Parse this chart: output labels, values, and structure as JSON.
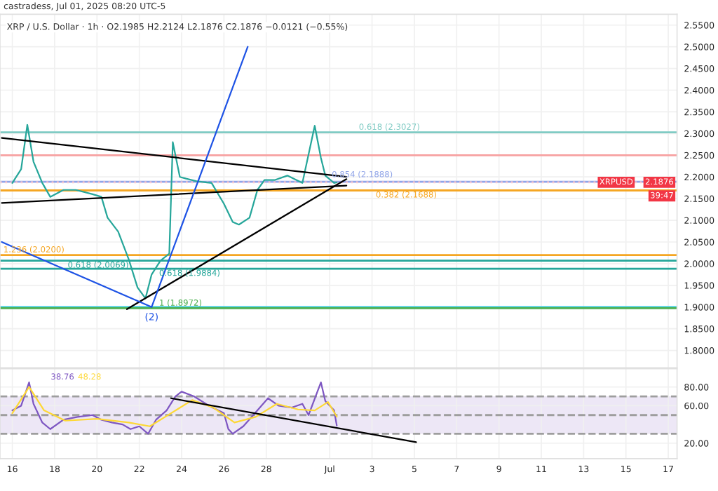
{
  "chart_data": [
    {
      "type": "line",
      "subtitle": "castradess, Jul 01, 2025 08:20 UTC-5",
      "title": "XRP / U.S. Dollar · 1h · O2.1985 H2.2124 L2.1876 C2.1876 −0.0121 (−0.55%)",
      "xlim": [
        "2025-06-15T10:00",
        "2025-07-17T10:00"
      ],
      "ylim": [
        1.76,
        2.575
      ],
      "xticks": [
        {
          "value": "2025-06-16",
          "label": null
        },
        {
          "value": "2025-06-18",
          "label": null
        },
        {
          "value": "2025-06-20",
          "label": null
        },
        {
          "value": "2025-06-22",
          "label": null
        },
        {
          "value": "2025-06-24",
          "label": null
        },
        {
          "value": "2025-06-26",
          "label": null
        },
        {
          "value": "2025-06-28",
          "label": null
        },
        {
          "value": "2025-07-01",
          "label": null
        },
        {
          "value": "2025-07-03",
          "label": null
        },
        {
          "value": "2025-07-05",
          "label": null
        },
        {
          "value": "2025-07-07",
          "label": null
        },
        {
          "value": "2025-07-09",
          "label": null
        },
        {
          "value": "2025-07-11",
          "label": null
        },
        {
          "value": "2025-07-13",
          "label": null
        },
        {
          "value": "2025-07-15",
          "label": null
        },
        {
          "value": "2025-07-17",
          "label": null
        }
      ],
      "yticks": [
        {
          "value": 1.8,
          "label": "1.8000"
        },
        {
          "value": 1.85,
          "label": "1.8500"
        },
        {
          "value": 1.9,
          "label": "1.9000"
        },
        {
          "value": 1.95,
          "label": "1.9500"
        },
        {
          "value": 2.0,
          "label": "2.0000"
        },
        {
          "value": 2.05,
          "label": "2.0500"
        },
        {
          "value": 2.1,
          "label": "2.1000"
        },
        {
          "value": 2.15,
          "label": "2.1500"
        },
        {
          "value": 2.2,
          "label": "2.2000"
        },
        {
          "value": 2.25,
          "label": "2.2500"
        },
        {
          "value": 2.3,
          "label": "2.3000"
        },
        {
          "value": 2.35,
          "label": "2.3500"
        },
        {
          "value": 2.4,
          "label": "2.4000"
        },
        {
          "value": 2.45,
          "label": "2.4500"
        },
        {
          "value": 2.5,
          "label": "2.5000"
        },
        {
          "value": 2.55,
          "label": "2.5500"
        }
      ],
      "tick_labels": "y",
      "grid": true,
      "series": [
        {
          "color": "#26a69a",
          "x": [
            "2025-06-16T00:00",
            "2025-06-16T10:00",
            "2025-06-16T17:00",
            "2025-06-17T00:00",
            "2025-06-17T10:00",
            "2025-06-17T19:00",
            "2025-06-18T10:00",
            "2025-06-19T00:00",
            "2025-06-19T19:00",
            "2025-06-20T05:00",
            "2025-06-20T12:00",
            "2025-06-21T00:00",
            "2025-06-21T12:00",
            "2025-06-21T22:00",
            "2025-06-22T07:00",
            "2025-06-22T14:00",
            "2025-06-23T00:00",
            "2025-06-23T10:00",
            "2025-06-23T14:00",
            "2025-06-23T22:00",
            "2025-06-24T05:00",
            "2025-06-24T17:00",
            "2025-06-25T10:00",
            "2025-06-26T00:00",
            "2025-06-26T10:00",
            "2025-06-26T17:00",
            "2025-06-27T05:00",
            "2025-06-27T14:00",
            "2025-06-27T22:00",
            "2025-06-28T10:00",
            "2025-06-29T00:00",
            "2025-06-29T17:00",
            "2025-06-30T07:00",
            "2025-06-30T14:00",
            "2025-06-30T19:00",
            "2025-07-01T05:00",
            "2025-07-01T08:00"
          ],
          "values": [
            2.186,
            2.218,
            2.32,
            2.235,
            2.186,
            2.154,
            2.17,
            2.17,
            2.16,
            2.154,
            2.106,
            2.074,
            2.01,
            1.945,
            1.92,
            1.975,
            2.007,
            2.023,
            2.28,
            2.2,
            2.196,
            2.19,
            2.186,
            2.138,
            2.096,
            2.09,
            2.106,
            2.17,
            2.193,
            2.193,
            2.203,
            2.186,
            2.318,
            2.244,
            2.203,
            2.186,
            2.1876
          ]
        },
        {
          "color": "#000000",
          "x": [
            "2025-06-15T12:00",
            "2025-07-01T19:00"
          ],
          "values": [
            2.29,
            2.2
          ]
        },
        {
          "color": "#000000",
          "x": [
            "2025-06-15T12:00",
            "2025-07-01T19:00"
          ],
          "values": [
            2.14,
            2.18
          ]
        },
        {
          "color": "#000000",
          "x": [
            "2025-06-21T10:00",
            "2025-07-01T19:00"
          ],
          "values": [
            1.895,
            2.195
          ]
        },
        {
          "color": "#1e53e5",
          "x": [
            "2025-06-15T12:00",
            "2025-06-22T14:00",
            "2025-06-27T03:00"
          ],
          "values": [
            2.05,
            1.9,
            2.5
          ]
        }
      ],
      "ref_lines": [
        {
          "axis": "y",
          "value": 2.3027,
          "label": "0.618 (2.3027)",
          "color": "#80cbc4"
        },
        {
          "axis": "y",
          "value": 2.25,
          "color": "#f7a1a1"
        },
        {
          "axis": "y",
          "value": 2.1888,
          "label": "0.854 (2.1888)",
          "color": "#90a4e8"
        },
        {
          "axis": "y",
          "value": 2.1688,
          "label": "0.382 (2.1688)",
          "color": "#f5a623"
        },
        {
          "axis": "y",
          "value": 2.02,
          "label": "1.236 (2.0200)",
          "color": "#f5a623"
        },
        {
          "axis": "y",
          "value": 2.0069,
          "label": "0.618 (2.0069)",
          "color": "#26a69a"
        },
        {
          "axis": "y",
          "value": 1.9884,
          "label": "0.618 (1.9884)",
          "color": "#26a69a"
        },
        {
          "axis": "y",
          "value": 1.9,
          "color": "#4dd0e1"
        },
        {
          "axis": "y",
          "value": 1.8972,
          "label": "1 (1.8972)",
          "color": "#4caf50"
        },
        {
          "axis": "y",
          "value": 2.1876,
          "label": "2.1876",
          "color": "#f7c6cf",
          "line_style": "dotted"
        }
      ],
      "annotations": [
        {
          "text": "(2)",
          "x": "2025-06-22T14:00",
          "y": 1.9
        },
        "XRPUSD",
        "39:47"
      ]
    },
    {
      "type": "line",
      "xlim": [
        "2025-06-15T10:00",
        "2025-07-17T10:00"
      ],
      "ylim": [
        3.5,
        99.5
      ],
      "xticks": [
        {
          "value": "2025-06-16",
          "label": "16"
        },
        {
          "value": "2025-06-18",
          "label": "18"
        },
        {
          "value": "2025-06-20",
          "label": "20"
        },
        {
          "value": "2025-06-22",
          "label": "22"
        },
        {
          "value": "2025-06-24",
          "label": "24"
        },
        {
          "value": "2025-06-26",
          "label": "26"
        },
        {
          "value": "2025-06-28",
          "label": "28"
        },
        {
          "value": "2025-07-01",
          "label": "Jul"
        },
        {
          "value": "2025-07-03",
          "label": "3"
        },
        {
          "value": "2025-07-05",
          "label": "5"
        },
        {
          "value": "2025-07-07",
          "label": "7"
        },
        {
          "value": "2025-07-09",
          "label": "9"
        },
        {
          "value": "2025-07-11",
          "label": "11"
        },
        {
          "value": "2025-07-13",
          "label": "13"
        },
        {
          "value": "2025-07-15",
          "label": "15"
        },
        {
          "value": "2025-07-17",
          "label": "17"
        }
      ],
      "yticks": [
        {
          "value": 20,
          "label": "20.00"
        },
        {
          "value": 60,
          "label": "60.00"
        },
        {
          "value": 80,
          "label": "80.00"
        }
      ],
      "grid": true,
      "series": [
        {
          "color": "#7e57c2",
          "x": [
            "2025-06-16T00:00",
            "2025-06-16T10:00",
            "2025-06-16T19:00",
            "2025-06-17T00:00",
            "2025-06-17T10:00",
            "2025-06-17T19:00",
            "2025-06-18T10:00",
            "2025-06-19T02:00",
            "2025-06-19T19:00",
            "2025-06-20T05:00",
            "2025-06-20T17:00",
            "2025-06-21T05:00",
            "2025-06-21T14:00",
            "2025-06-22T00:00",
            "2025-06-22T10:00",
            "2025-06-22T19:00",
            "2025-06-23T07:00",
            "2025-06-23T17:00",
            "2025-06-24T00:00",
            "2025-06-24T14:00",
            "2025-06-25T07:00",
            "2025-06-26T00:00",
            "2025-06-26T05:00",
            "2025-06-26T10:00",
            "2025-06-26T22:00",
            "2025-06-27T14:00",
            "2025-06-28T02:00",
            "2025-06-28T14:00",
            "2025-06-29T05:00",
            "2025-06-29T17:00",
            "2025-06-30T00:00",
            "2025-06-30T14:00",
            "2025-06-30T19:00",
            "2025-07-01T05:00",
            "2025-07-01T08:00"
          ],
          "values": [
            55,
            60,
            85,
            62,
            42,
            35,
            45,
            48,
            50,
            45,
            42,
            40,
            35,
            38,
            30,
            45,
            55,
            70,
            75,
            70,
            60,
            52,
            35,
            30,
            38,
            55,
            68,
            60,
            58,
            62,
            50,
            85,
            65,
            55,
            38.76
          ]
        },
        {
          "color": "#fdd835",
          "x": [
            "2025-06-16T00:00",
            "2025-06-16T19:00",
            "2025-06-17T12:00",
            "2025-06-18T12:00",
            "2025-06-20T00:00",
            "2025-06-21T12:00",
            "2025-06-22T12:00",
            "2025-06-23T12:00",
            "2025-06-24T12:00",
            "2025-06-25T12:00",
            "2025-06-26T12:00",
            "2025-06-27T12:00",
            "2025-06-28T12:00",
            "2025-06-29T12:00",
            "2025-06-30T07:00",
            "2025-06-30T22:00",
            "2025-07-01T08:00"
          ],
          "values": [
            52,
            80,
            55,
            44,
            46,
            42,
            38,
            52,
            66,
            58,
            42,
            48,
            62,
            56,
            55,
            64,
            48.28
          ]
        },
        {
          "color": "#000000",
          "x": [
            "2025-06-23T12:00",
            "2025-07-05T02:00"
          ],
          "values": [
            68,
            21
          ]
        }
      ],
      "bands": [
        {
          "axis": "y",
          "from": 30,
          "to": 70,
          "color": "#ede7f6"
        }
      ],
      "ref_lines": [
        {
          "axis": "y",
          "value": 70,
          "color": "#9e9e9e",
          "line_style": "dashed"
        },
        {
          "axis": "y",
          "value": 50,
          "color": "#9e9e9e",
          "line_style": "dashed"
        },
        {
          "axis": "y",
          "value": 30,
          "color": "#9e9e9e",
          "line_style": "dashed"
        }
      ],
      "annotations": [
        "38.76",
        "48.28"
      ]
    }
  ]
}
